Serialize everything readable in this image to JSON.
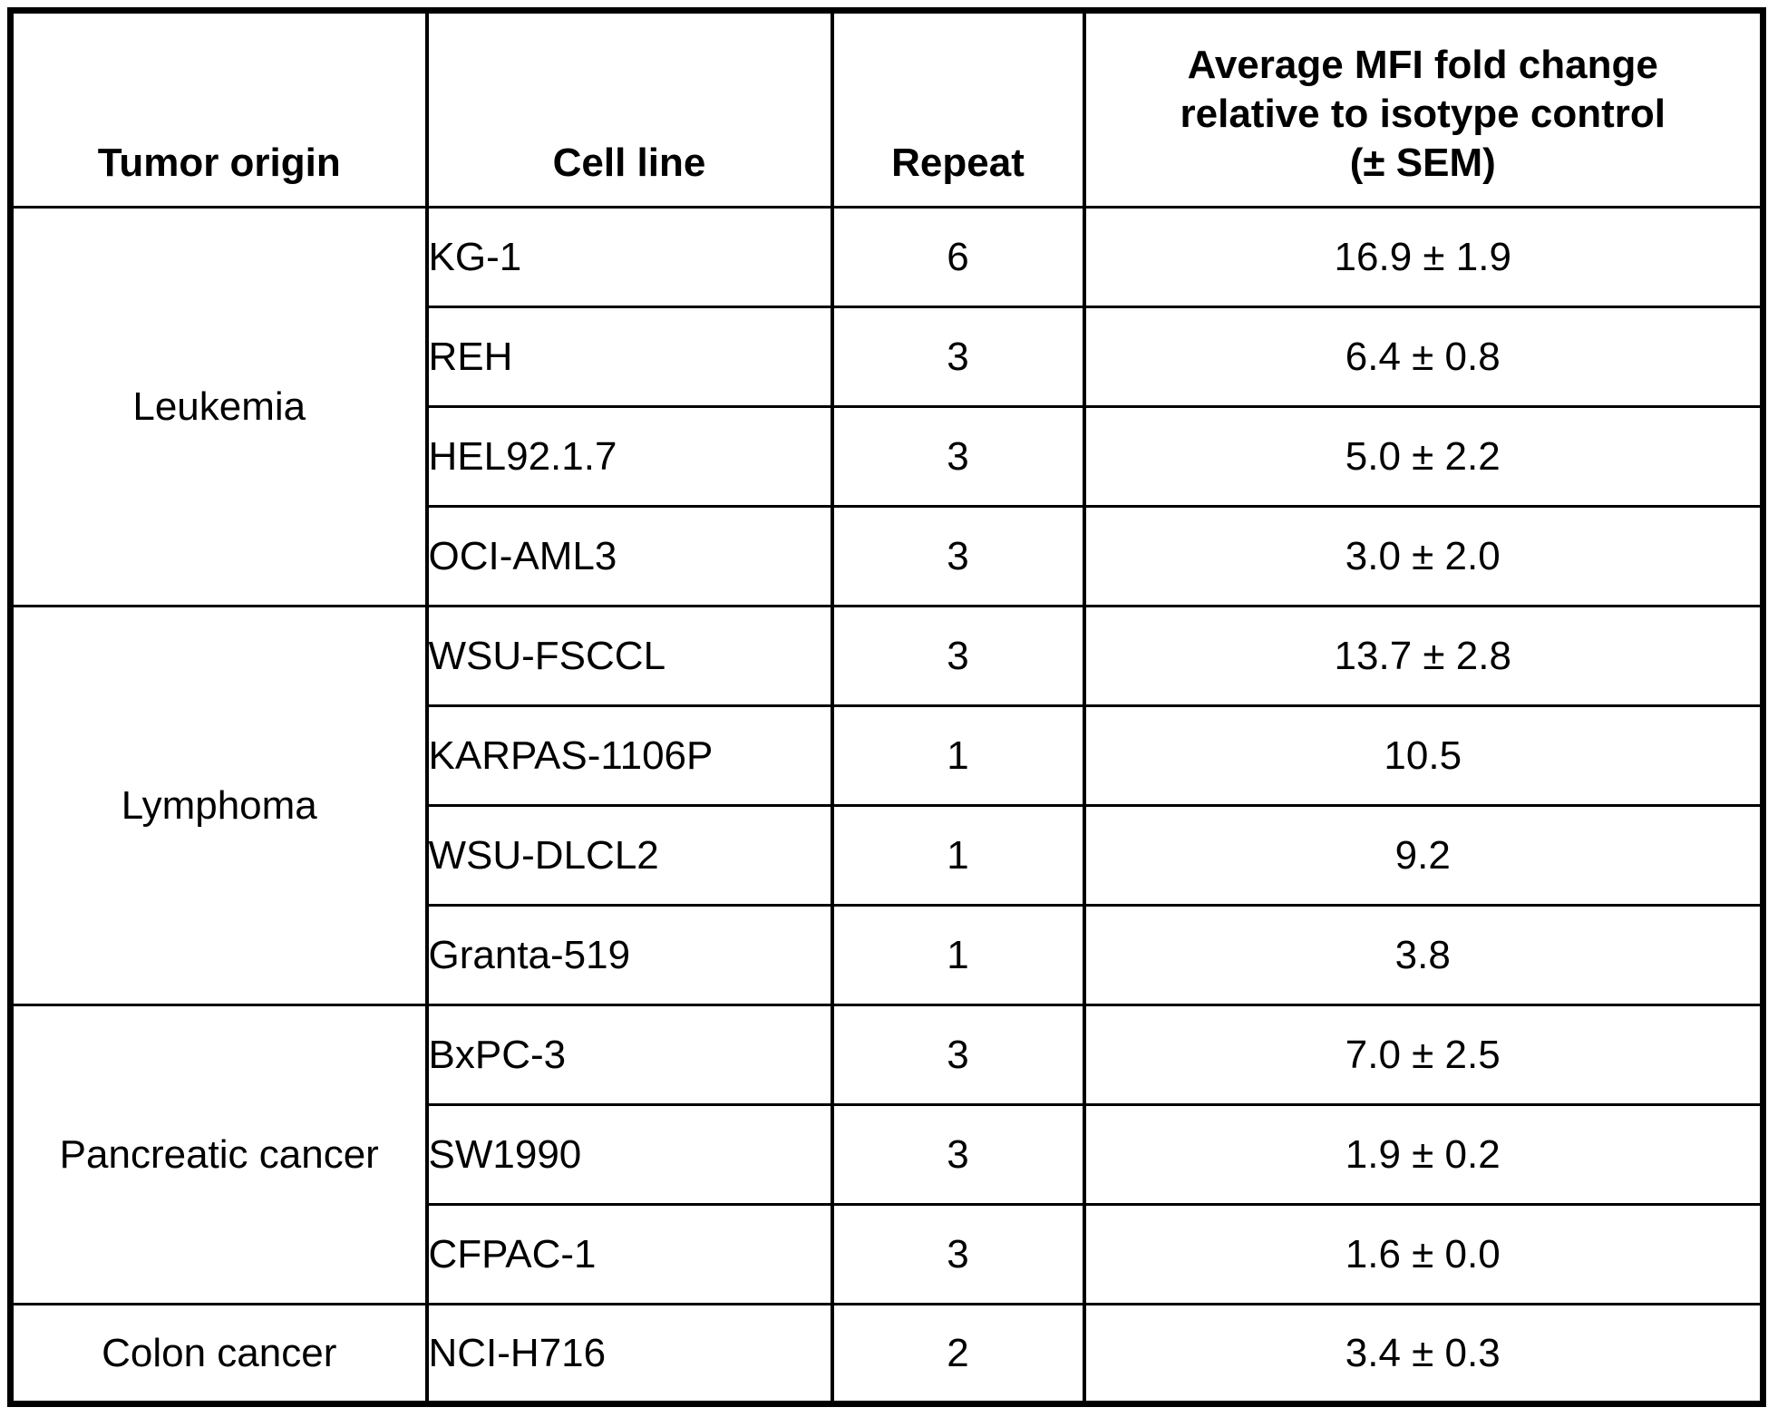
{
  "table": {
    "header": {
      "tumor_origin": "Tumor origin",
      "cell_line": "Cell line",
      "repeat": "Repeat",
      "avg_mfi": "Average MFI fold change\nrelative to isotype control\n(± SEM)"
    },
    "groups": [
      {
        "tumor_origin": "Leukemia",
        "rows": [
          {
            "cell_line": "KG-1",
            "repeat": "6",
            "value": "16.9 ± 1.9"
          },
          {
            "cell_line": "REH",
            "repeat": "3",
            "value": "6.4 ± 0.8"
          },
          {
            "cell_line": "HEL92.1.7",
            "repeat": "3",
            "value": "5.0 ± 2.2"
          },
          {
            "cell_line": "OCI-AML3",
            "repeat": "3",
            "value": "3.0 ± 2.0"
          }
        ]
      },
      {
        "tumor_origin": "Lymphoma",
        "rows": [
          {
            "cell_line": "WSU-FSCCL",
            "repeat": "3",
            "value": "13.7 ± 2.8"
          },
          {
            "cell_line": "KARPAS-1106P",
            "repeat": "1",
            "value": "10.5"
          },
          {
            "cell_line": "WSU-DLCL2",
            "repeat": "1",
            "value": "9.2"
          },
          {
            "cell_line": "Granta-519",
            "repeat": "1",
            "value": "3.8"
          }
        ]
      },
      {
        "tumor_origin": "Pancreatic cancer",
        "rows": [
          {
            "cell_line": "BxPC-3",
            "repeat": "3",
            "value": "7.0 ± 2.5"
          },
          {
            "cell_line": "SW1990",
            "repeat": "3",
            "value": "1.9 ± 0.2"
          },
          {
            "cell_line": "CFPAC-1",
            "repeat": "3",
            "value": "1.6 ± 0.0"
          }
        ]
      },
      {
        "tumor_origin": "Colon cancer",
        "rows": [
          {
            "cell_line": "NCI-H716",
            "repeat": "2",
            "value": "3.4 ± 0.3"
          }
        ]
      }
    ]
  },
  "colors": {
    "background": "#ffffff",
    "border": "#000000",
    "text": "#000000"
  }
}
